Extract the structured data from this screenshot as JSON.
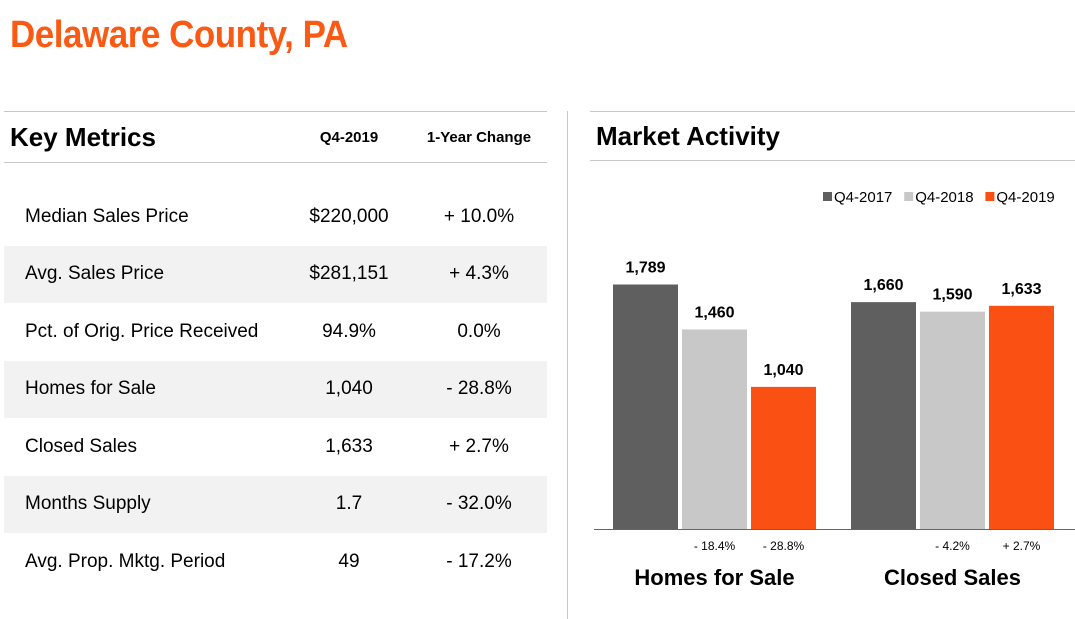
{
  "page": {
    "title": "Delaware County, PA"
  },
  "key_metrics": {
    "title": "Key Metrics",
    "col_period": "Q4-2019",
    "col_change": "1-Year Change",
    "rows": [
      {
        "label": "Median Sales Price",
        "value": "$220,000",
        "change": "+ 10.0%"
      },
      {
        "label": "Avg. Sales Price",
        "value": "$281,151",
        "change": "+ 4.3%"
      },
      {
        "label": "Pct. of Orig. Price Received",
        "value": "94.9%",
        "change": "0.0%"
      },
      {
        "label": "Homes for Sale",
        "value": "1,040",
        "change": "- 28.8%"
      },
      {
        "label": "Closed Sales",
        "value": "1,633",
        "change": "+ 2.7%"
      },
      {
        "label": "Months Supply",
        "value": "1.7",
        "change": "- 32.0%"
      },
      {
        "label": "Avg. Prop. Mktg. Period",
        "value": "49",
        "change": "- 17.2%"
      }
    ]
  },
  "market_activity": {
    "title": "Market Activity"
  },
  "chart_data": {
    "type": "bar",
    "categories": [
      "Homes for Sale",
      "Closed Sales"
    ],
    "series": [
      {
        "name": "Q4-2017",
        "color": "#5f5f5f",
        "values": [
          1789,
          1660
        ],
        "labels": [
          "1,789",
          "1,660"
        ]
      },
      {
        "name": "Q4-2018",
        "color": "#c8c8c8",
        "values": [
          1460,
          1590
        ],
        "labels": [
          "1,460",
          "1,590"
        ]
      },
      {
        "name": "Q4-2019",
        "color": "#fa5014",
        "values": [
          1040,
          1633
        ],
        "labels": [
          "1,040",
          "1,633"
        ]
      }
    ],
    "changes": [
      {
        "category": "Homes for Sale",
        "Q4-2018": "- 18.4%",
        "Q4-2019": "- 28.8%"
      },
      {
        "category": "Closed Sales",
        "Q4-2018": "- 4.2%",
        "Q4-2019": "+ 2.7%"
      }
    ],
    "ylim": [
      0,
      1800
    ],
    "legend": "top-right",
    "grid": false
  }
}
